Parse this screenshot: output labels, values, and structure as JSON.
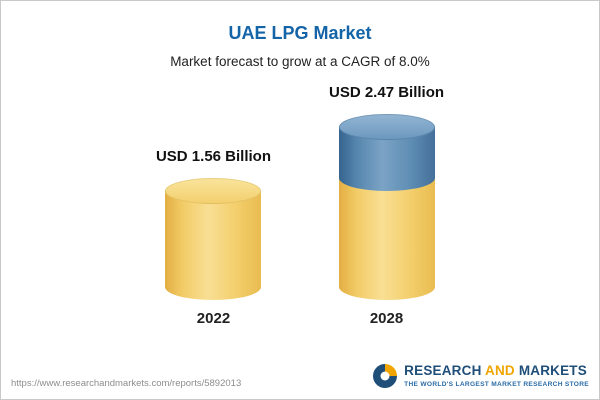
{
  "header": {
    "title": "UAE LPG Market",
    "subtitle": "Market forecast to grow at a CAGR of 8.0%"
  },
  "chart_data": {
    "type": "bar",
    "variant": "3d-cylinder",
    "title": "UAE LPG Market",
    "subtitle": "Market forecast to grow at a CAGR of 8.0%",
    "cagr": "8.0%",
    "unit": "USD Billion",
    "categories": [
      "2022",
      "2028"
    ],
    "values": [
      1.56,
      2.47
    ],
    "legend": "none",
    "grid": "off",
    "points": [
      {
        "category": "2022",
        "value": 1.56,
        "label": "USD 1.56 Billion",
        "segments": [
          {
            "color": "gold",
            "value": 1.56
          }
        ]
      },
      {
        "category": "2028",
        "value": 2.47,
        "label": "USD 2.47 Billion",
        "segments": [
          {
            "color": "gold",
            "value": 1.56
          },
          {
            "color": "blue",
            "value": 0.91
          }
        ]
      }
    ],
    "colors": {
      "gold": "#F2CB66",
      "blue": "#5E8DB4",
      "title": "#1464A8"
    }
  },
  "footer": {
    "url": "https://www.researchandmarkets.com/reports/5892013",
    "logo": {
      "research": "RESEARCH",
      "and": "AND",
      "markets": "MARKETS",
      "tagline": "THE WORLD'S LARGEST MARKET RESEARCH STORE"
    }
  }
}
